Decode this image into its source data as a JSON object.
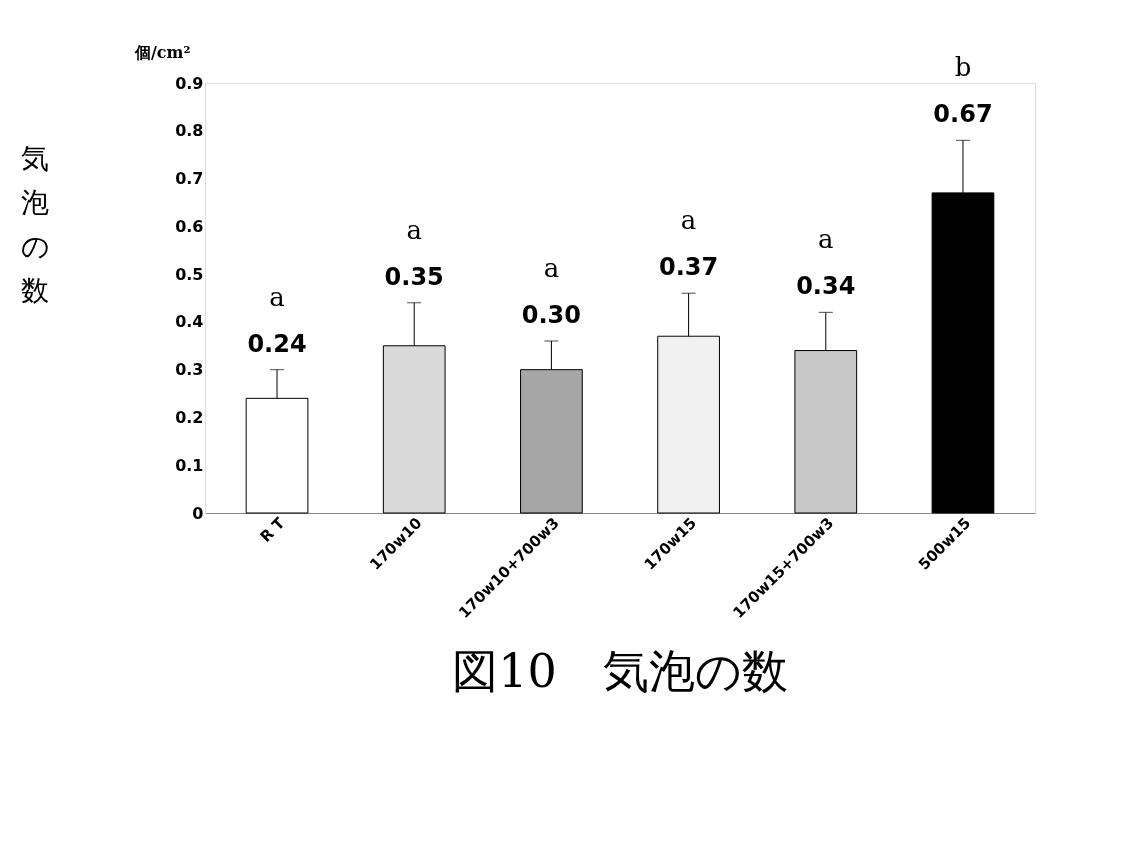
{
  "chart_data": {
    "type": "bar",
    "title": "図10　気泡の数",
    "ylabel": "気泡の数",
    "categories": [
      "R T",
      "170w10",
      "170w10+700w3",
      "170w15",
      "170w15+700w3",
      "500w15"
    ],
    "values": [
      0.24,
      0.35,
      0.3,
      0.37,
      0.34,
      0.67
    ],
    "value_labels": [
      "0.24",
      "0.35",
      "0.30",
      "0.37",
      "0.34",
      "0.67"
    ],
    "colors": [
      "#ffffff",
      "#d9d9d9",
      "#a6a6a6",
      "#f0f0f0",
      "#c8c8c8",
      "#000000"
    ],
    "errors": [
      [
        0.24,
        0.3
      ],
      [
        0.35,
        0.44
      ],
      [
        0.3,
        0.36
      ],
      [
        0.37,
        0.46
      ],
      [
        0.34,
        0.42
      ],
      [
        0.67,
        0.78
      ]
    ],
    "ylim": [
      0,
      0.9
    ],
    "yticks": [
      0,
      0.1,
      0.2,
      0.3,
      0.4,
      0.5,
      0.6,
      0.7,
      0.8,
      0.9
    ],
    "grid": false,
    "annotations": [
      "個/cm²",
      "a",
      "a",
      "a",
      "a",
      "a",
      "b"
    ]
  }
}
